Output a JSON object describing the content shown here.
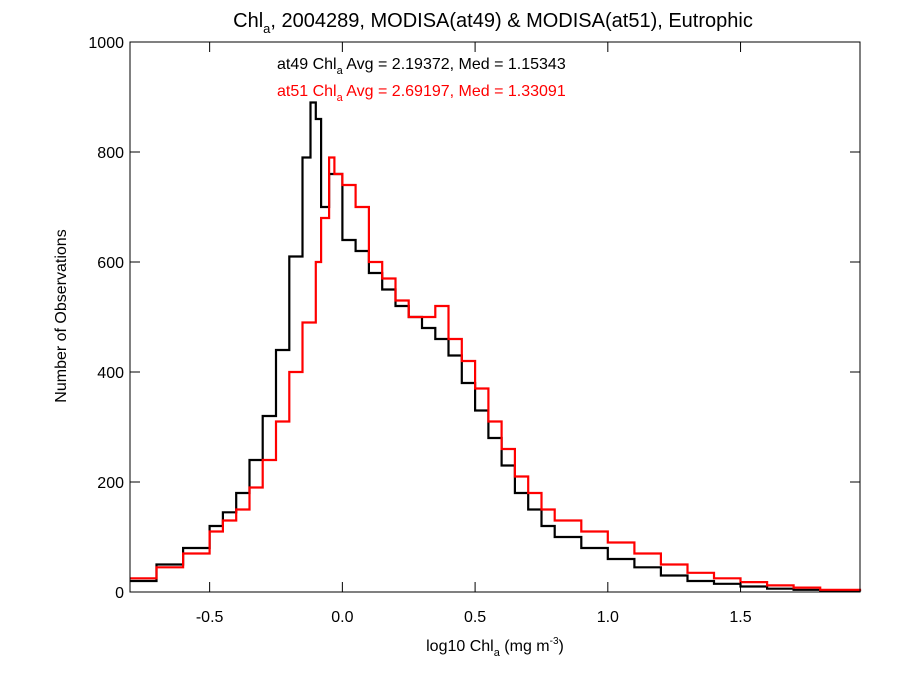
{
  "chart_data": {
    "type": "line",
    "title": {
      "pre": "Chl",
      "sub": "a",
      "post": ", 2004289, MODISA(at49) & MODISA(at51), Eutrophic"
    },
    "xlabel": {
      "pre": "log10 Chl",
      "sub": "a",
      "mid": " (mg m",
      "sup": "-3",
      "post": ")"
    },
    "ylabel": "Number of Observations",
    "xlim": [
      -0.8,
      1.95
    ],
    "ylim": [
      0,
      1000
    ],
    "xticks": [
      -0.5,
      0.0,
      0.5,
      1.0,
      1.5
    ],
    "xtick_labels": [
      "-0.5",
      "0.0",
      "0.5",
      "1.0",
      "1.5"
    ],
    "yticks": [
      0,
      200,
      400,
      600,
      800,
      1000
    ],
    "ytick_labels": [
      "0",
      "200",
      "400",
      "600",
      "800",
      "1000"
    ],
    "grid": false,
    "annotations": [
      {
        "pre": "at49 Chl",
        "sub": "a",
        "post": " Avg = 2.19372, Med = 1.15343",
        "color": "#000000"
      },
      {
        "pre": "at51 Chl",
        "sub": "a",
        "post": " Avg = 2.69197, Med = 1.33091",
        "color": "#ff0000"
      }
    ],
    "series": [
      {
        "color": "#000000",
        "points": [
          [
            -0.8,
            20
          ],
          [
            -0.7,
            50
          ],
          [
            -0.6,
            80
          ],
          [
            -0.5,
            120
          ],
          [
            -0.45,
            145
          ],
          [
            -0.4,
            180
          ],
          [
            -0.35,
            240
          ],
          [
            -0.3,
            320
          ],
          [
            -0.25,
            440
          ],
          [
            -0.2,
            610
          ],
          [
            -0.15,
            790
          ],
          [
            -0.12,
            890
          ],
          [
            -0.1,
            860
          ],
          [
            -0.08,
            700
          ],
          [
            -0.05,
            760
          ],
          [
            0.0,
            640
          ],
          [
            0.05,
            620
          ],
          [
            0.1,
            580
          ],
          [
            0.15,
            550
          ],
          [
            0.2,
            520
          ],
          [
            0.25,
            500
          ],
          [
            0.3,
            480
          ],
          [
            0.35,
            460
          ],
          [
            0.4,
            430
          ],
          [
            0.45,
            380
          ],
          [
            0.5,
            330
          ],
          [
            0.55,
            280
          ],
          [
            0.6,
            230
          ],
          [
            0.65,
            180
          ],
          [
            0.7,
            150
          ],
          [
            0.75,
            120
          ],
          [
            0.8,
            100
          ],
          [
            0.9,
            80
          ],
          [
            1.0,
            60
          ],
          [
            1.1,
            45
          ],
          [
            1.2,
            30
          ],
          [
            1.3,
            20
          ],
          [
            1.4,
            15
          ],
          [
            1.5,
            10
          ],
          [
            1.6,
            6
          ],
          [
            1.7,
            4
          ],
          [
            1.8,
            2
          ],
          [
            1.95,
            1
          ]
        ]
      },
      {
        "color": "#ff0000",
        "points": [
          [
            -0.8,
            25
          ],
          [
            -0.7,
            45
          ],
          [
            -0.6,
            70
          ],
          [
            -0.5,
            110
          ],
          [
            -0.45,
            130
          ],
          [
            -0.4,
            150
          ],
          [
            -0.35,
            190
          ],
          [
            -0.3,
            240
          ],
          [
            -0.25,
            310
          ],
          [
            -0.2,
            400
          ],
          [
            -0.15,
            490
          ],
          [
            -0.1,
            600
          ],
          [
            -0.08,
            680
          ],
          [
            -0.05,
            790
          ],
          [
            -0.03,
            760
          ],
          [
            0.0,
            740
          ],
          [
            0.05,
            700
          ],
          [
            0.1,
            600
          ],
          [
            0.15,
            570
          ],
          [
            0.2,
            530
          ],
          [
            0.25,
            500
          ],
          [
            0.3,
            500
          ],
          [
            0.35,
            520
          ],
          [
            0.4,
            460
          ],
          [
            0.45,
            420
          ],
          [
            0.5,
            370
          ],
          [
            0.55,
            310
          ],
          [
            0.6,
            260
          ],
          [
            0.65,
            210
          ],
          [
            0.7,
            180
          ],
          [
            0.75,
            150
          ],
          [
            0.8,
            130
          ],
          [
            0.9,
            110
          ],
          [
            1.0,
            90
          ],
          [
            1.1,
            70
          ],
          [
            1.2,
            50
          ],
          [
            1.3,
            35
          ],
          [
            1.4,
            25
          ],
          [
            1.5,
            18
          ],
          [
            1.6,
            12
          ],
          [
            1.7,
            8
          ],
          [
            1.8,
            4
          ],
          [
            1.95,
            2
          ]
        ]
      }
    ]
  }
}
